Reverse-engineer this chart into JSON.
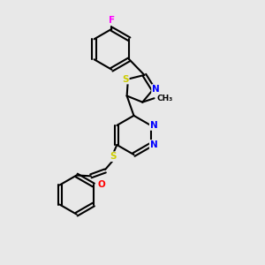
{
  "background_color": "#e8e8e8",
  "bond_color": "#000000",
  "atom_colors": {
    "F": "#ff00ff",
    "S": "#cccc00",
    "N": "#0000ff",
    "O": "#ff0000",
    "C": "#000000"
  },
  "figsize": [
    3.0,
    3.0
  ],
  "dpi": 100
}
